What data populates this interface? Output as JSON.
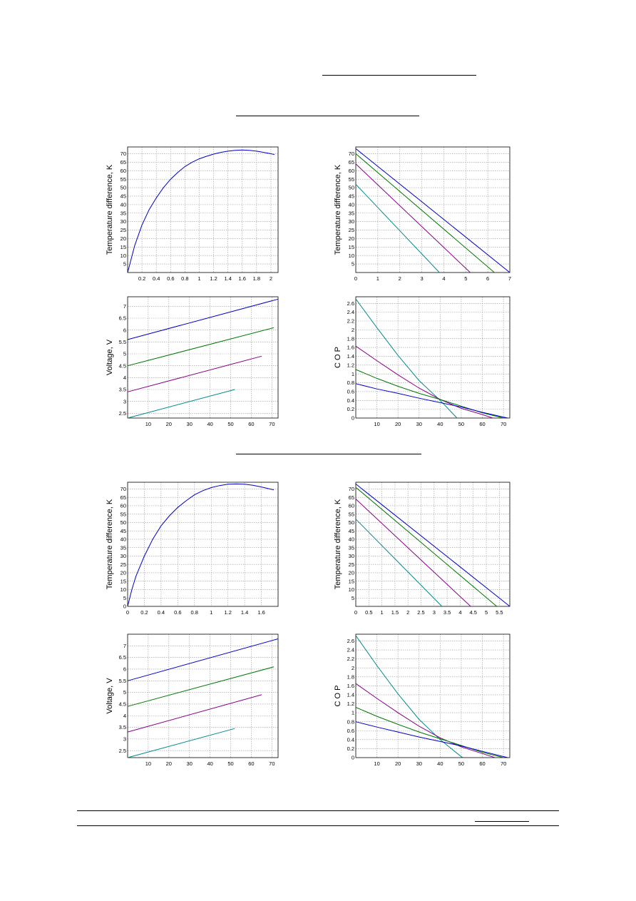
{
  "colors": {
    "c1": "#0000cc",
    "c2": "#007700",
    "c3": "#880088",
    "c4": "#008b8b"
  },
  "chart_data": [
    {
      "type": "line",
      "ylabel": "Temperature difference, K",
      "xlim": [
        0,
        2.1
      ],
      "ylim": [
        0,
        74
      ],
      "xticks": [
        0.2,
        0.4,
        0.6,
        0.8,
        1,
        1.2,
        1.4,
        1.6,
        1.8,
        2
      ],
      "yticks": [
        5,
        10,
        15,
        20,
        25,
        30,
        35,
        40,
        45,
        50,
        55,
        60,
        65,
        70
      ],
      "series": [
        {
          "color": "c1",
          "points": [
            [
              0,
              0
            ],
            [
              0.1,
              16
            ],
            [
              0.2,
              28
            ],
            [
              0.3,
              37
            ],
            [
              0.4,
              44
            ],
            [
              0.5,
              50
            ],
            [
              0.6,
              55
            ],
            [
              0.7,
              59
            ],
            [
              0.8,
              62.5
            ],
            [
              0.9,
              65
            ],
            [
              1,
              67
            ],
            [
              1.1,
              68.5
            ],
            [
              1.2,
              69.8
            ],
            [
              1.3,
              70.8
            ],
            [
              1.4,
              71.5
            ],
            [
              1.5,
              72
            ],
            [
              1.6,
              72.2
            ],
            [
              1.7,
              72
            ],
            [
              1.8,
              71.5
            ],
            [
              1.9,
              70.8
            ],
            [
              2,
              70
            ],
            [
              2.05,
              69.5
            ]
          ]
        }
      ]
    },
    {
      "type": "line",
      "ylabel": "Temperature difference, K",
      "xlim": [
        0,
        7
      ],
      "ylim": [
        0,
        74
      ],
      "xticks": [
        0,
        1,
        2,
        3,
        4,
        5,
        6,
        7
      ],
      "yticks": [
        5,
        10,
        15,
        20,
        25,
        30,
        35,
        40,
        45,
        50,
        55,
        60,
        65,
        70
      ],
      "series": [
        {
          "color": "c1",
          "points": [
            [
              0,
              73
            ],
            [
              7,
              0
            ]
          ]
        },
        {
          "color": "c2",
          "points": [
            [
              0,
              70
            ],
            [
              6.3,
              0
            ]
          ]
        },
        {
          "color": "c3",
          "points": [
            [
              0,
              64
            ],
            [
              5.2,
              0
            ]
          ]
        },
        {
          "color": "c4",
          "points": [
            [
              0,
              52
            ],
            [
              3.8,
              0
            ]
          ]
        }
      ]
    },
    {
      "type": "line",
      "ylabel": "Voltage, V",
      "xlim": [
        0,
        73
      ],
      "ylim": [
        2.3,
        7.4
      ],
      "xticks": [
        10,
        20,
        30,
        40,
        50,
        60,
        70
      ],
      "yticks": [
        2.5,
        3,
        3.5,
        4,
        4.5,
        5,
        5.5,
        6,
        6.5,
        7
      ],
      "series": [
        {
          "color": "c1",
          "points": [
            [
              0,
              5.6
            ],
            [
              73,
              7.3
            ]
          ]
        },
        {
          "color": "c2",
          "points": [
            [
              0,
              4.5
            ],
            [
              71,
              6.1
            ]
          ]
        },
        {
          "color": "c3",
          "points": [
            [
              0,
              3.4
            ],
            [
              65,
              4.9
            ]
          ]
        },
        {
          "color": "c4",
          "points": [
            [
              0,
              2.3
            ],
            [
              52,
              3.5
            ]
          ]
        }
      ]
    },
    {
      "type": "line",
      "ylabel": "C O P",
      "xlim": [
        0,
        73
      ],
      "ylim": [
        0,
        2.75
      ],
      "xticks": [
        10,
        20,
        30,
        40,
        50,
        60,
        70
      ],
      "yticks": [
        0,
        0.2,
        0.4,
        0.6,
        0.8,
        1,
        1.2,
        1.4,
        1.6,
        1.8,
        2,
        2.2,
        2.4,
        2.6
      ],
      "series": [
        {
          "color": "c4",
          "points": [
            [
              0,
              2.7
            ],
            [
              10,
              2.05
            ],
            [
              20,
              1.42
            ],
            [
              30,
              0.85
            ],
            [
              40,
              0.4
            ],
            [
              48,
              0
            ]
          ]
        },
        {
          "color": "c3",
          "points": [
            [
              0,
              1.63
            ],
            [
              10,
              1.3
            ],
            [
              20,
              0.98
            ],
            [
              30,
              0.68
            ],
            [
              40,
              0.42
            ],
            [
              50,
              0.22
            ],
            [
              60,
              0.08
            ],
            [
              65,
              0
            ]
          ]
        },
        {
          "color": "c2",
          "points": [
            [
              0,
              1.1
            ],
            [
              10,
              0.9
            ],
            [
              20,
              0.72
            ],
            [
              30,
              0.56
            ],
            [
              40,
              0.42
            ],
            [
              50,
              0.27
            ],
            [
              60,
              0.12
            ],
            [
              70,
              0
            ]
          ]
        },
        {
          "color": "c1",
          "points": [
            [
              0,
              0.78
            ],
            [
              10,
              0.66
            ],
            [
              20,
              0.56
            ],
            [
              30,
              0.45
            ],
            [
              40,
              0.35
            ],
            [
              50,
              0.25
            ],
            [
              60,
              0.13
            ],
            [
              72,
              0
            ]
          ]
        }
      ]
    },
    {
      "type": "line",
      "ylabel": "Temperature difference, K",
      "xlim": [
        0,
        1.8
      ],
      "ylim": [
        0,
        74
      ],
      "xticks": [
        0,
        0.2,
        0.4,
        0.6,
        0.8,
        1,
        1.2,
        1.4,
        1.6
      ],
      "yticks": [
        0,
        5,
        10,
        15,
        20,
        25,
        30,
        35,
        40,
        45,
        50,
        55,
        60,
        65,
        70
      ],
      "series": [
        {
          "color": "c1",
          "points": [
            [
              0,
              0
            ],
            [
              0.05,
              10
            ],
            [
              0.1,
              18
            ],
            [
              0.2,
              30
            ],
            [
              0.3,
              40
            ],
            [
              0.4,
              48
            ],
            [
              0.5,
              54
            ],
            [
              0.6,
              59
            ],
            [
              0.7,
              63
            ],
            [
              0.8,
              66.5
            ],
            [
              0.9,
              69
            ],
            [
              1,
              70.8
            ],
            [
              1.1,
              72
            ],
            [
              1.2,
              72.8
            ],
            [
              1.3,
              73
            ],
            [
              1.4,
              72.8
            ],
            [
              1.5,
              72.2
            ],
            [
              1.6,
              71.2
            ],
            [
              1.7,
              70
            ],
            [
              1.75,
              69.5
            ]
          ]
        }
      ]
    },
    {
      "type": "line",
      "ylabel": "Temperature difference, K",
      "xlim": [
        0,
        5.9
      ],
      "ylim": [
        0,
        74
      ],
      "xticks": [
        0,
        0.5,
        1,
        1.5,
        2,
        2.5,
        3,
        3.5,
        4,
        4.5,
        5,
        5.5
      ],
      "yticks": [
        5,
        10,
        15,
        20,
        25,
        30,
        35,
        40,
        45,
        50,
        55,
        60,
        65,
        70
      ],
      "series": [
        {
          "color": "c1",
          "points": [
            [
              0,
              73
            ],
            [
              5.9,
              0
            ]
          ]
        },
        {
          "color": "c2",
          "points": [
            [
              0,
              71
            ],
            [
              5.4,
              0
            ]
          ]
        },
        {
          "color": "c3",
          "points": [
            [
              0,
              64
            ],
            [
              4.4,
              0
            ]
          ]
        },
        {
          "color": "c4",
          "points": [
            [
              0,
              52
            ],
            [
              3.3,
              0
            ]
          ]
        }
      ]
    },
    {
      "type": "line",
      "ylabel": "Voltage, V",
      "xlim": [
        0,
        73
      ],
      "ylim": [
        2.2,
        7.5
      ],
      "xticks": [
        10,
        20,
        30,
        40,
        50,
        60,
        70
      ],
      "yticks": [
        2.5,
        3,
        3.5,
        4,
        4.5,
        5,
        5.5,
        6,
        6.5,
        7
      ],
      "series": [
        {
          "color": "c1",
          "points": [
            [
              0,
              5.5
            ],
            [
              73,
              7.3
            ]
          ]
        },
        {
          "color": "c2",
          "points": [
            [
              0,
              4.4
            ],
            [
              71,
              6.1
            ]
          ]
        },
        {
          "color": "c3",
          "points": [
            [
              0,
              3.3
            ],
            [
              65,
              4.9
            ]
          ]
        },
        {
          "color": "c4",
          "points": [
            [
              0,
              2.2
            ],
            [
              52,
              3.45
            ]
          ]
        }
      ]
    },
    {
      "type": "line",
      "ylabel": "C O P",
      "xlim": [
        0,
        73
      ],
      "ylim": [
        0,
        2.75
      ],
      "xticks": [
        10,
        20,
        30,
        40,
        50,
        60,
        70
      ],
      "yticks": [
        0,
        0.2,
        0.4,
        0.6,
        0.8,
        1,
        1.2,
        1.4,
        1.6,
        1.8,
        2,
        2.2,
        2.4,
        2.6
      ],
      "series": [
        {
          "color": "c4",
          "points": [
            [
              0,
              2.72
            ],
            [
              10,
              2.05
            ],
            [
              20,
              1.42
            ],
            [
              30,
              0.85
            ],
            [
              40,
              0.4
            ],
            [
              50,
              0.02
            ],
            [
              51,
              0
            ]
          ]
        },
        {
          "color": "c3",
          "points": [
            [
              0,
              1.65
            ],
            [
              10,
              1.32
            ],
            [
              20,
              1.0
            ],
            [
              30,
              0.7
            ],
            [
              40,
              0.44
            ],
            [
              50,
              0.24
            ],
            [
              60,
              0.09
            ],
            [
              66,
              0
            ]
          ]
        },
        {
          "color": "c2",
          "points": [
            [
              0,
              1.12
            ],
            [
              10,
              0.92
            ],
            [
              20,
              0.74
            ],
            [
              30,
              0.57
            ],
            [
              40,
              0.42
            ],
            [
              50,
              0.27
            ],
            [
              60,
              0.12
            ],
            [
              70,
              0
            ]
          ]
        },
        {
          "color": "c1",
          "points": [
            [
              0,
              0.8
            ],
            [
              10,
              0.68
            ],
            [
              20,
              0.57
            ],
            [
              30,
              0.46
            ],
            [
              40,
              0.36
            ],
            [
              50,
              0.26
            ],
            [
              60,
              0.14
            ],
            [
              72,
              0
            ]
          ]
        }
      ]
    }
  ]
}
